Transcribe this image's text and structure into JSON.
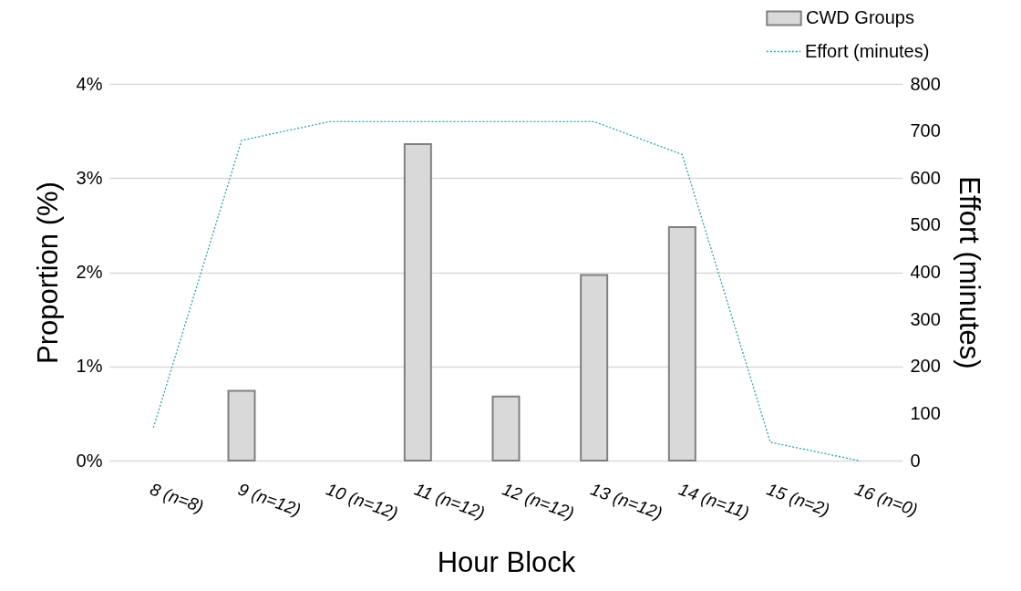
{
  "chart_data": {
    "type": "bar",
    "xlabel": "Hour Block",
    "ylabel": "Proportion (%)",
    "y2label": "Effort (minutes)",
    "categories": [
      "8 (n=8)",
      "9 (n=12)",
      "10 (n=12)",
      "11 (n=12)",
      "12 (n=12)",
      "13 (n=12)",
      "14 (n=11)",
      "15 (n=2)",
      "16 (n=0)"
    ],
    "series": [
      {
        "name": "CWD Groups",
        "color": "#d9d9d9",
        "values": [
          null,
          0.74,
          null,
          3.36,
          0.68,
          1.97,
          2.48,
          null,
          null
        ]
      },
      {
        "name": "Effort (minutes)",
        "type": "line",
        "axis": "y2",
        "color": "#2aa6a6",
        "line_style": "dotted",
        "values": [
          70,
          680,
          720,
          720,
          720,
          720,
          650,
          39,
          0
        ]
      }
    ],
    "ylim": [
      0,
      4
    ],
    "yticks": [
      {
        "value": 0,
        "label": "0%"
      },
      {
        "value": 1,
        "label": "1%"
      },
      {
        "value": 2,
        "label": "2%"
      },
      {
        "value": 3,
        "label": "3%"
      },
      {
        "value": 4,
        "label": "4%"
      }
    ],
    "y2lim": [
      0,
      800
    ],
    "y2ticks": [
      0,
      100,
      200,
      300,
      400,
      500,
      600,
      700,
      800
    ],
    "grid": "y",
    "legend": "top right"
  }
}
